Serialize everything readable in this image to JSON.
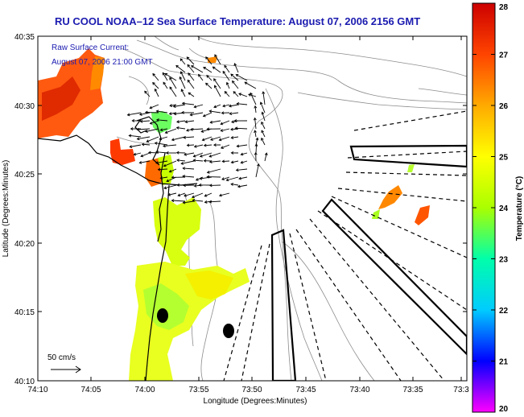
{
  "title": "RU COOL  NOAA–12  Sea Surface Temperature:  August 07, 2006 2156 GMT",
  "annotation": {
    "line1": "Raw Surface Current:",
    "line2": "August 07, 2006 21:00 GMT"
  },
  "scale_label": "50 cm/s",
  "x_axis": {
    "label": "Longitude (Degrees:Minutes)",
    "ticks": [
      "74:10",
      "74:05",
      "74:00",
      "73:55",
      "73:50",
      "73:45",
      "73:40",
      "73:35",
      "73:3"
    ]
  },
  "y_axis": {
    "label": "Latitude (Degrees:Minutes)",
    "ticks": [
      "40:35",
      "40:30",
      "40:25",
      "40:20",
      "40:15",
      "40:10"
    ]
  },
  "colorbar": {
    "label": "Temperature (°C)",
    "ticks": [
      "28",
      "27",
      "26",
      "25",
      "24",
      "23",
      "22",
      "21",
      "20"
    ],
    "range": [
      20,
      28
    ],
    "colors": [
      "#ff00ff",
      "#0000ff",
      "#00ccff",
      "#00ffaa",
      "#aaff00",
      "#ffff00",
      "#ffaa00",
      "#ff4400",
      "#cc0000"
    ]
  },
  "colors": {
    "title_text": "#1b1bb0",
    "annotation_text": "#1b1bb0",
    "frame": "#000000",
    "coast": "#000000",
    "bathymetry": "#888888",
    "markers": "#000000"
  }
}
